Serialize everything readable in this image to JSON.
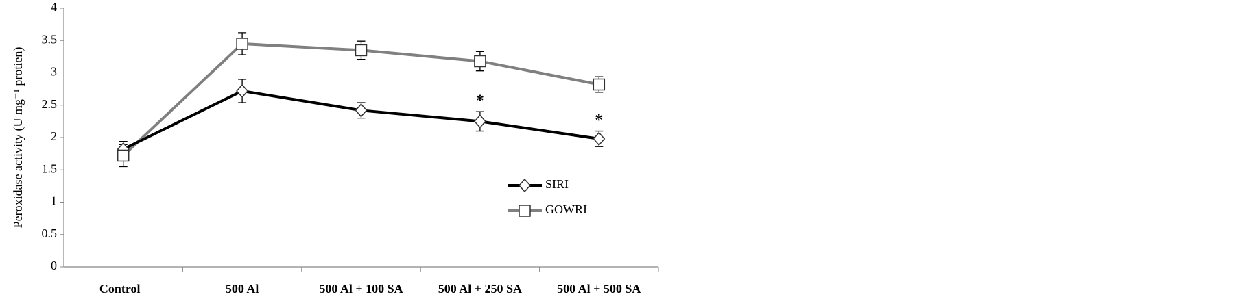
{
  "chart_data": {
    "type": "line",
    "y_label": "Peroxidase activity (U mg⁻¹ protien)",
    "categories": [
      "Control",
      "500 Al",
      "500 Al + 100 SA",
      "500 Al + 250 SA",
      "500 Al + 500 SA"
    ],
    "series": [
      {
        "name": "SIRI",
        "color": "#000000",
        "marker": "diamond",
        "values": [
          1.82,
          2.72,
          2.42,
          2.25,
          1.98
        ],
        "errors": [
          0.12,
          0.18,
          0.12,
          0.15,
          0.12
        ],
        "annotations": [
          null,
          null,
          null,
          "*",
          "*"
        ]
      },
      {
        "name": "GOWRI",
        "color": "#808080",
        "marker": "square",
        "values": [
          1.72,
          3.45,
          3.35,
          3.18,
          2.82
        ],
        "errors": [
          0.17,
          0.17,
          0.14,
          0.15,
          0.12
        ]
      }
    ],
    "ylim": [
      0,
      4
    ],
    "yticks": [
      0,
      0.5,
      1,
      1.5,
      2,
      2.5,
      3,
      3.5,
      4
    ],
    "grid": false
  }
}
